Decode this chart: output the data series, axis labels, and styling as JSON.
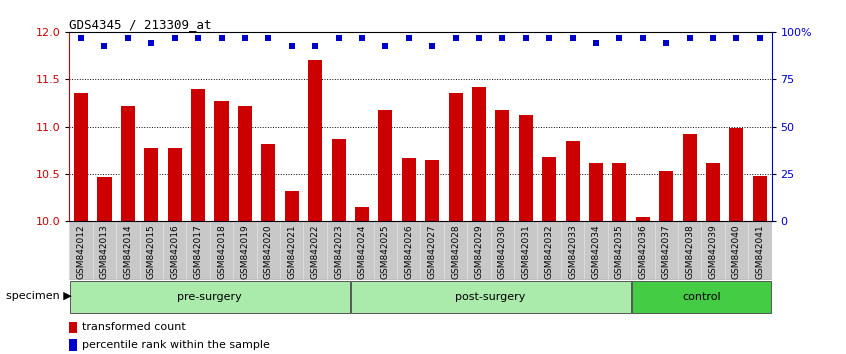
{
  "title": "GDS4345 / 213309_at",
  "categories": [
    "GSM842012",
    "GSM842013",
    "GSM842014",
    "GSM842015",
    "GSM842016",
    "GSM842017",
    "GSM842018",
    "GSM842019",
    "GSM842020",
    "GSM842021",
    "GSM842022",
    "GSM842023",
    "GSM842024",
    "GSM842025",
    "GSM842026",
    "GSM842027",
    "GSM842028",
    "GSM842029",
    "GSM842030",
    "GSM842031",
    "GSM842032",
    "GSM842033",
    "GSM842034",
    "GSM842035",
    "GSM842036",
    "GSM842037",
    "GSM842038",
    "GSM842039",
    "GSM842040",
    "GSM842041"
  ],
  "bar_values": [
    11.35,
    10.47,
    11.22,
    10.77,
    10.77,
    11.4,
    11.27,
    11.22,
    10.82,
    10.32,
    11.7,
    10.87,
    10.15,
    11.18,
    10.67,
    10.65,
    11.35,
    11.42,
    11.18,
    11.12,
    10.68,
    10.85,
    10.62,
    10.62,
    10.05,
    10.53,
    10.92,
    10.62,
    10.98,
    10.48
  ],
  "percentile_values": [
    11.935,
    11.855,
    11.935,
    11.885,
    11.935,
    11.935,
    11.935,
    11.935,
    11.935,
    11.855,
    11.855,
    11.935,
    11.935,
    11.855,
    11.935,
    11.855,
    11.935,
    11.935,
    11.935,
    11.935,
    11.935,
    11.935,
    11.885,
    11.935,
    11.935,
    11.885,
    11.935,
    11.935,
    11.935,
    11.935
  ],
  "bar_color": "#cc0000",
  "dot_color": "#0000cc",
  "ylim_left": [
    10.0,
    12.0
  ],
  "yticks_left": [
    10.0,
    10.5,
    11.0,
    11.5,
    12.0
  ],
  "yticks_right": [
    0,
    25,
    50,
    75,
    100
  ],
  "ylim_right": [
    0,
    100
  ],
  "groups": [
    {
      "label": "pre-surgery",
      "start": 0,
      "end": 12,
      "color": "#aaeaaa"
    },
    {
      "label": "post-surgery",
      "start": 12,
      "end": 24,
      "color": "#aaeaaa"
    },
    {
      "label": "control",
      "start": 24,
      "end": 30,
      "color": "#44cc44"
    }
  ],
  "specimen_label": "specimen",
  "legend_items": [
    {
      "label": "transformed count",
      "color": "#cc0000"
    },
    {
      "label": "percentile rank within the sample",
      "color": "#0000cc"
    }
  ],
  "dotted_lines": [
    10.5,
    11.0,
    11.5
  ],
  "axis_color_left": "#cc0000",
  "axis_color_right": "#0000cc",
  "tick_bg_color": "#c8c8c8",
  "bar_width": 0.6,
  "tick_fontsize": 6.5,
  "ytick_fontsize": 8
}
